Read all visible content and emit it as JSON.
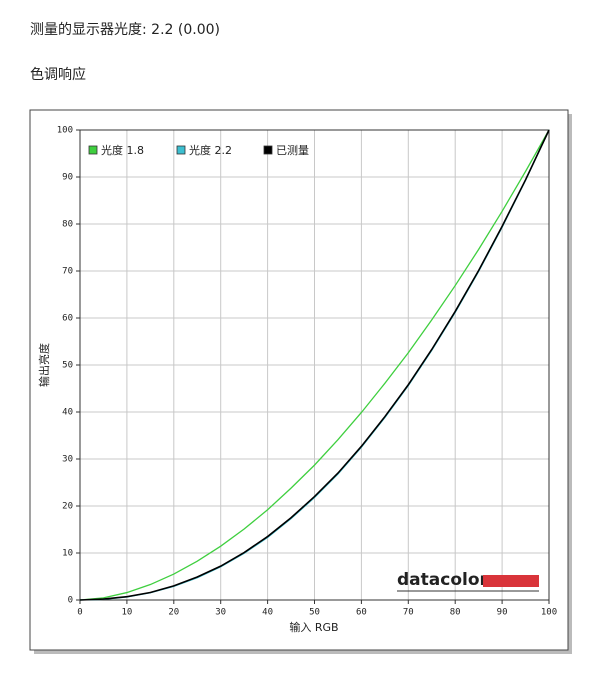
{
  "header": {
    "title": "测量的显示器光度:  2.2 (0.00)",
    "section": "色调响应"
  },
  "chart_data": {
    "type": "line",
    "x_label": "输入 RGB",
    "y_label": "输出亮度",
    "brand": "datacolor",
    "x": [
      0,
      5,
      10,
      15,
      20,
      25,
      30,
      35,
      40,
      45,
      50,
      55,
      60,
      65,
      70,
      75,
      80,
      85,
      90,
      95,
      100
    ],
    "series": [
      {
        "name": "光度 1.8",
        "color": "#3fcf3f",
        "values": [
          0,
          0.45,
          1.58,
          3.29,
          5.52,
          8.25,
          11.45,
          15.1,
          19.2,
          23.8,
          28.7,
          34.1,
          39.9,
          46.1,
          52.6,
          59.6,
          66.9,
          74.6,
          82.7,
          91.2,
          100
        ]
      },
      {
        "name": "光度 2.2",
        "color": "#3cbfd0",
        "values": [
          0,
          0.14,
          0.63,
          1.54,
          2.9,
          4.74,
          7.07,
          9.93,
          13.3,
          17.3,
          21.8,
          26.8,
          32.5,
          38.8,
          45.6,
          53.1,
          61.2,
          69.9,
          79.3,
          89.3,
          100
        ]
      },
      {
        "name": "已测量",
        "color": "#000000",
        "values": [
          0,
          0.2,
          0.7,
          1.6,
          3.0,
          4.9,
          7.2,
          10.1,
          13.5,
          17.5,
          22.0,
          27.0,
          32.7,
          39.0,
          45.8,
          53.3,
          61.4,
          70.1,
          79.5,
          89.4,
          100
        ]
      }
    ],
    "xlim": [
      0,
      100
    ],
    "ylim": [
      0,
      100
    ],
    "xticks": [
      0,
      10,
      20,
      30,
      40,
      50,
      60,
      70,
      80,
      90,
      100
    ],
    "yticks": [
      0,
      10,
      20,
      30,
      40,
      50,
      60,
      70,
      80,
      90,
      100
    ],
    "grid": true,
    "legend": "top-left"
  }
}
